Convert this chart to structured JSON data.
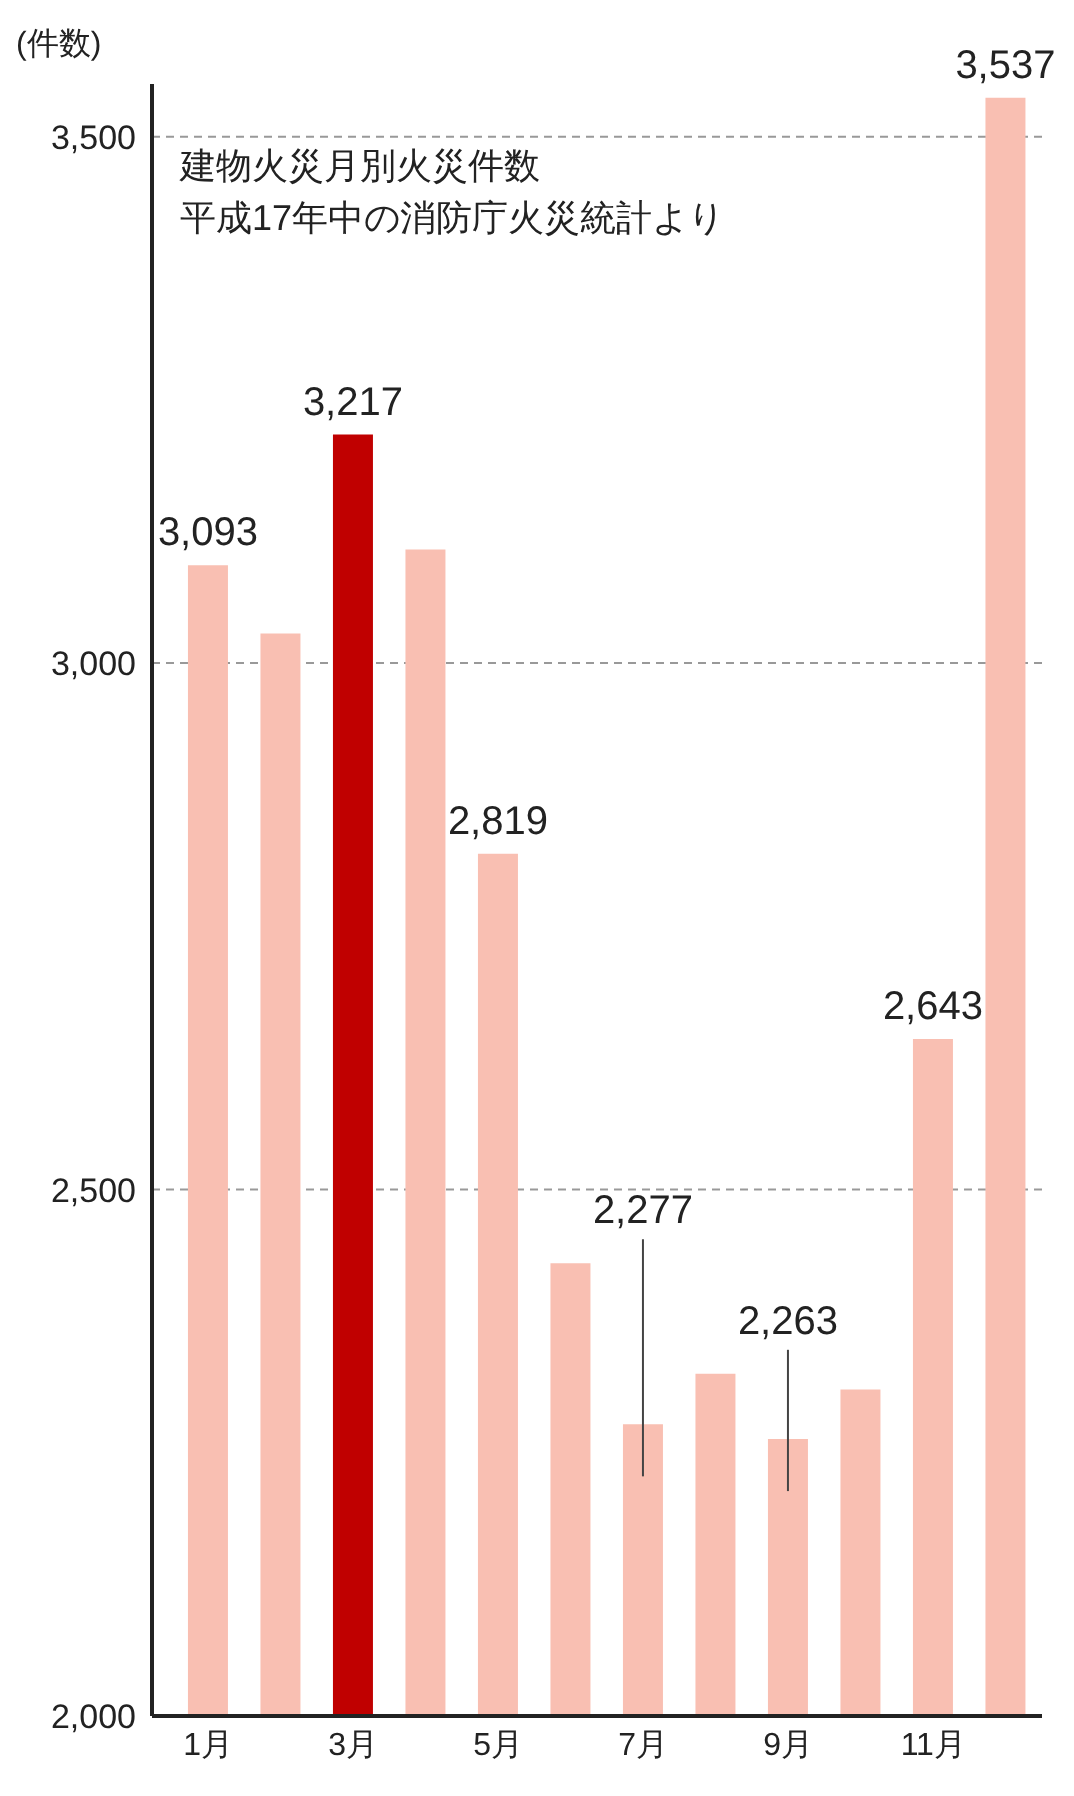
{
  "chart_data": {
    "type": "bar",
    "title": "建物火災月別火災件数",
    "subtitle": "平成17年中の消防庁火災統計より",
    "ylabel": "(件数)",
    "categories": [
      "1月",
      null,
      "3月",
      null,
      "5月",
      null,
      "7月",
      null,
      "9月",
      null,
      "11月",
      null
    ],
    "values": [
      3093,
      3028,
      3217,
      3108,
      2819,
      2430,
      2277,
      2325,
      2263,
      2310,
      2643,
      3537
    ],
    "colors": [
      "#f9bfb2",
      "#f9bfb2",
      "#c00000",
      "#f9bfb2",
      "#f9bfb2",
      "#f9bfb2",
      "#f9bfb2",
      "#f9bfb2",
      "#f9bfb2",
      "#f9bfb2",
      "#f9bfb2",
      "#f9bfb2"
    ],
    "value_labels": [
      "3,093",
      null,
      "3,217",
      null,
      "2,819",
      null,
      "2,277",
      null,
      "2,263",
      null,
      "2,643",
      "3,537"
    ],
    "ylim": [
      2000,
      3550
    ],
    "yticks": [
      {
        "value": 2000,
        "label": "2,000"
      },
      {
        "value": 2500,
        "label": "2,500"
      },
      {
        "value": 3000,
        "label": "3,000"
      },
      {
        "value": 3500,
        "label": "3,500"
      }
    ],
    "grid": "y"
  }
}
